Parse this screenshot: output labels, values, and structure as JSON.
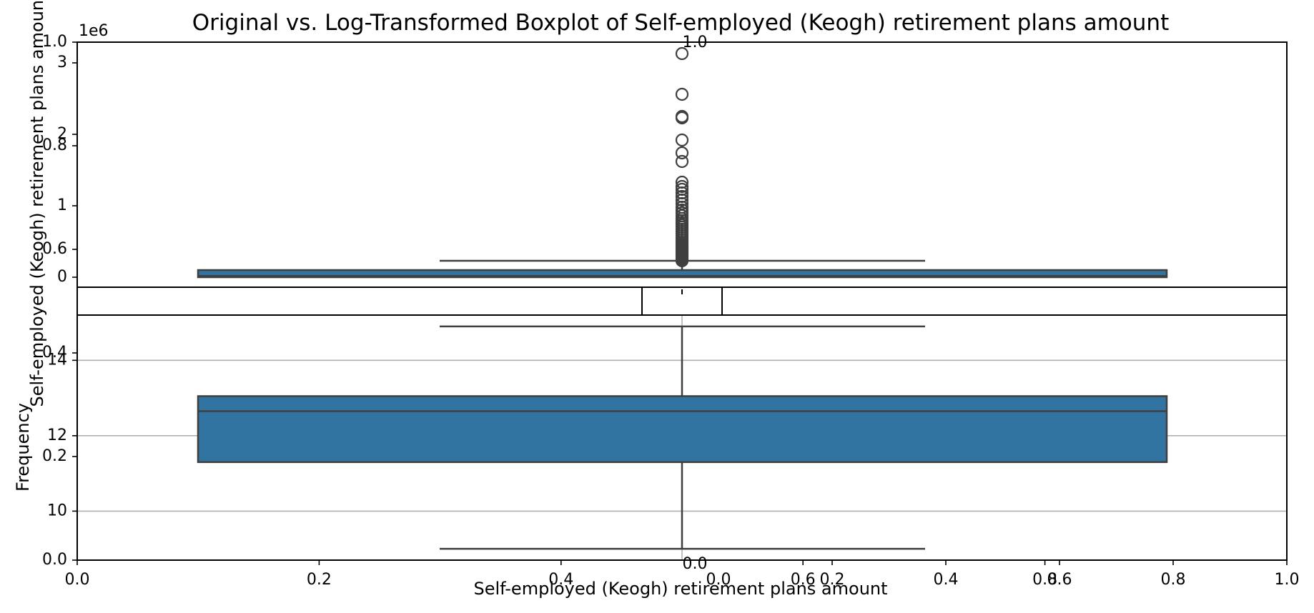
{
  "chart_data": {
    "type": "boxplot",
    "title": "Original vs. Log-Transformed Boxplot of Self-employed (Keogh) retirement plans amount",
    "figure_axis": {
      "xlabel": "Self-employed (Keogh) retirement plans amount",
      "ylabel": "Frequency",
      "xlim": [
        0.0,
        1.0
      ],
      "ylim": [
        0.0,
        1.0
      ],
      "xticks": [
        0.0,
        0.2,
        0.4,
        0.6,
        0.8,
        1.0
      ],
      "yticks": [
        0.0,
        0.2,
        0.4,
        0.6,
        0.8,
        1.0
      ]
    },
    "top_panel": {
      "ylabel": "Self-employed (Keogh) retirement plans amount",
      "offset_text": "1e6",
      "ylim": [
        -0.05,
        3.35
      ],
      "yticks": [
        0,
        1,
        2,
        3
      ],
      "box": {
        "q1": 0.0,
        "median": 0.02,
        "q3": 0.09,
        "whisker_low": 0.0,
        "whisker_high": 0.22,
        "color": "#3274a1"
      },
      "outliers": [
        3.13,
        2.56,
        2.25,
        2.23,
        1.92,
        1.74,
        1.62,
        1.33,
        1.27,
        1.23,
        1.18,
        1.13,
        1.08,
        1.03,
        0.98,
        0.94,
        0.9,
        0.86,
        0.82,
        0.79,
        0.76,
        0.73,
        0.7,
        0.67,
        0.64,
        0.61,
        0.58,
        0.55,
        0.52,
        0.49,
        0.47,
        0.45,
        0.43,
        0.41,
        0.39,
        0.37,
        0.35,
        0.33,
        0.31,
        0.29,
        0.27,
        0.25,
        0.23
      ]
    },
    "bottom_panel": {
      "xlabel": "0.0",
      "ylim": [
        8.7,
        15.2
      ],
      "yticks": [
        10,
        12,
        14
      ],
      "grid": true,
      "box": {
        "q1": 11.3,
        "median": 12.65,
        "q3": 13.05,
        "whisker_low": 9.0,
        "whisker_high": 14.9,
        "color": "#3274a1"
      }
    },
    "inset_axis": {
      "xticks": [
        0.0,
        0.2,
        0.4,
        0.6,
        0.8,
        1.0
      ],
      "xlim": [
        -0.002,
        1.0
      ],
      "xlabels": [
        "0.0",
        "0.2",
        "0.4",
        "0.6",
        "0.8",
        "1.0"
      ]
    },
    "top_axis_label": "1.0"
  }
}
